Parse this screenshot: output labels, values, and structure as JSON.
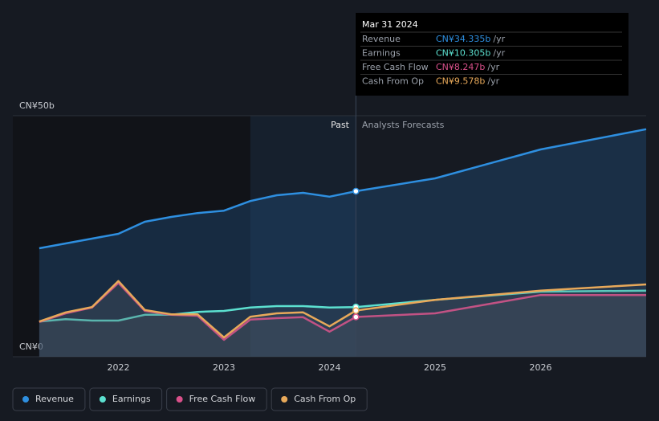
{
  "chart_data": {
    "type": "line",
    "x": [
      2021.25,
      2021.5,
      2021.75,
      2022.0,
      2022.25,
      2022.5,
      2022.75,
      2023.0,
      2023.25,
      2023.5,
      2023.75,
      2024.0,
      2024.25,
      2025.0,
      2026.0,
      2027.0
    ],
    "series": [
      {
        "name": "Revenue",
        "color": "#2e8fe0",
        "values": [
          22.5,
          23.5,
          24.5,
          25.5,
          28,
          29,
          29.8,
          30.3,
          32.3,
          33.5,
          34,
          33.2,
          34.335,
          37,
          43,
          47.2
        ]
      },
      {
        "name": "Earnings",
        "color": "#5ce0d0",
        "values": [
          7.3,
          7.8,
          7.5,
          7.5,
          8.7,
          8.7,
          9.3,
          9.5,
          10.2,
          10.5,
          10.5,
          10.2,
          10.305,
          11.8,
          13.5,
          13.7
        ]
      },
      {
        "name": "Free Cash Flow",
        "color": "#d9508a",
        "values": [
          7.2,
          9,
          10.2,
          15.3,
          9.5,
          8.7,
          8.5,
          3.5,
          7.7,
          8,
          8.2,
          5.2,
          8.247,
          9,
          12.8,
          12.8
        ]
      },
      {
        "name": "Cash From Op",
        "color": "#e8a95a",
        "values": [
          7.3,
          9.2,
          10.3,
          15.7,
          9.7,
          8.8,
          8.8,
          4,
          8.3,
          9,
          9.2,
          6.3,
          9.578,
          11.8,
          13.7,
          15
        ]
      }
    ],
    "xlim": [
      2021.0,
      2027.0
    ],
    "xticks": [
      2022,
      2023,
      2024,
      2025,
      2026
    ],
    "ylim": [
      0,
      50
    ],
    "yticks": [
      {
        "value": 0,
        "label": "CN¥0"
      },
      {
        "value": 50,
        "label": "CN¥50b"
      }
    ],
    "past_label": "Past",
    "forecast_label": "Analysts Forecasts",
    "tooltip": {
      "date": "Mar 31 2024",
      "rows": [
        {
          "label": "Revenue",
          "value": "CN¥34.335b",
          "unit": "/yr"
        },
        {
          "label": "Earnings",
          "value": "CN¥10.305b",
          "unit": "/yr"
        },
        {
          "label": "Free Cash Flow",
          "value": "CN¥8.247b",
          "unit": "/yr"
        },
        {
          "label": "Cash From Op",
          "value": "CN¥9.578b",
          "unit": "/yr"
        }
      ]
    }
  }
}
